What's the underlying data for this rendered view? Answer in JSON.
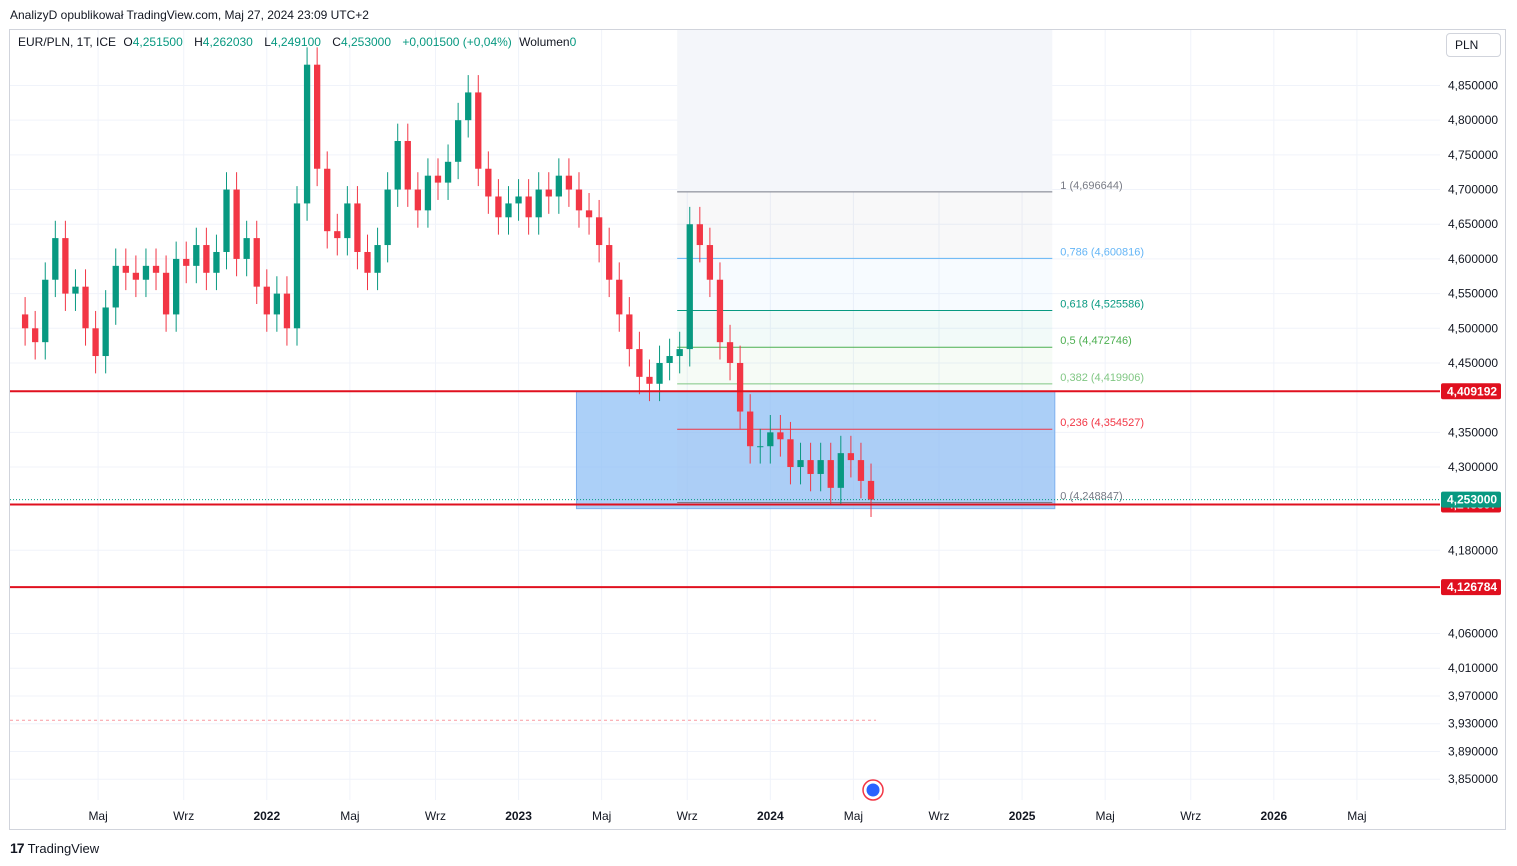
{
  "header": {
    "published_by": "AnalizyD opublikował TradingView.com, Maj 27, 2024 23:09 UTC+2"
  },
  "legend": {
    "symbol": "EUR/PLN, 1T, ICE",
    "o_label": "O",
    "o_value": "4,251500",
    "h_label": "H",
    "h_value": "4,262030",
    "l_label": "L",
    "l_value": "4,249100",
    "c_label": "C",
    "c_value": "4,253000",
    "change": "+0,001500 (+0,04%)",
    "volume_label": "Wolumen",
    "volume_value": "0"
  },
  "currency_button": "PLN",
  "footer": {
    "brand": "TradingView",
    "logo_glyph": "17"
  },
  "colors": {
    "up": "#089981",
    "down": "#f23645",
    "level_line": "#e0101f",
    "zone": "#90c0f5",
    "price_badge": "#089981"
  },
  "chart_data": {
    "type": "candlestick",
    "title": "",
    "ylim": [
      3.82,
      4.93
    ],
    "y_ticks": [
      {
        "v": 4.85,
        "label": "4,850000"
      },
      {
        "v": 4.8,
        "label": "4,800000"
      },
      {
        "v": 4.75,
        "label": "4,750000"
      },
      {
        "v": 4.7,
        "label": "4,700000"
      },
      {
        "v": 4.65,
        "label": "4,650000"
      },
      {
        "v": 4.6,
        "label": "4,600000"
      },
      {
        "v": 4.55,
        "label": "4,550000"
      },
      {
        "v": 4.5,
        "label": "4,500000"
      },
      {
        "v": 4.45,
        "label": "4,450000"
      },
      {
        "v": 4.35,
        "label": "4,350000"
      },
      {
        "v": 4.3,
        "label": "4,300000"
      },
      {
        "v": 4.18,
        "label": "4,180000"
      },
      {
        "v": 4.06,
        "label": "4,060000"
      },
      {
        "v": 4.01,
        "label": "4,010000"
      },
      {
        "v": 3.97,
        "label": "3,970000"
      },
      {
        "v": 3.93,
        "label": "3,930000"
      },
      {
        "v": 3.89,
        "label": "3,890000"
      },
      {
        "v": 3.85,
        "label": "3,850000"
      }
    ],
    "x_ticks": [
      {
        "t": 2021.33,
        "label": "Maj"
      },
      {
        "t": 2021.67,
        "label": "Wrz"
      },
      {
        "t": 2022.0,
        "label": "2022"
      },
      {
        "t": 2022.33,
        "label": "Maj"
      },
      {
        "t": 2022.67,
        "label": "Wrz"
      },
      {
        "t": 2023.0,
        "label": "2023"
      },
      {
        "t": 2023.33,
        "label": "Maj"
      },
      {
        "t": 2023.67,
        "label": "Wrz"
      },
      {
        "t": 2024.0,
        "label": "2024"
      },
      {
        "t": 2024.33,
        "label": "Maj"
      },
      {
        "t": 2024.67,
        "label": "Wrz"
      },
      {
        "t": 2025.0,
        "label": "2025"
      },
      {
        "t": 2025.33,
        "label": "Maj"
      },
      {
        "t": 2025.67,
        "label": "Wrz"
      },
      {
        "t": 2026.0,
        "label": "2026"
      },
      {
        "t": 2026.33,
        "label": "Maj"
      }
    ],
    "xlim": [
      2020.98,
      2026.66
    ],
    "close_series": [
      [
        2020.99,
        4.52
      ],
      [
        2021.04,
        4.5
      ],
      [
        2021.08,
        4.48
      ],
      [
        2021.12,
        4.57
      ],
      [
        2021.16,
        4.63
      ],
      [
        2021.2,
        4.55
      ],
      [
        2021.24,
        4.56
      ],
      [
        2021.28,
        4.5
      ],
      [
        2021.32,
        4.46
      ],
      [
        2021.36,
        4.53
      ],
      [
        2021.4,
        4.59
      ],
      [
        2021.44,
        4.58
      ],
      [
        2021.48,
        4.57
      ],
      [
        2021.52,
        4.59
      ],
      [
        2021.56,
        4.58
      ],
      [
        2021.6,
        4.52
      ],
      [
        2021.64,
        4.6
      ],
      [
        2021.68,
        4.59
      ],
      [
        2021.72,
        4.62
      ],
      [
        2021.76,
        4.58
      ],
      [
        2021.8,
        4.61
      ],
      [
        2021.84,
        4.7
      ],
      [
        2021.88,
        4.6
      ],
      [
        2021.92,
        4.63
      ],
      [
        2021.96,
        4.56
      ],
      [
        2022.0,
        4.52
      ],
      [
        2022.04,
        4.55
      ],
      [
        2022.08,
        4.5
      ],
      [
        2022.12,
        4.68
      ],
      [
        2022.16,
        4.88
      ],
      [
        2022.2,
        4.73
      ],
      [
        2022.24,
        4.64
      ],
      [
        2022.28,
        4.63
      ],
      [
        2022.32,
        4.68
      ],
      [
        2022.36,
        4.61
      ],
      [
        2022.4,
        4.58
      ],
      [
        2022.44,
        4.62
      ],
      [
        2022.48,
        4.7
      ],
      [
        2022.52,
        4.77
      ],
      [
        2022.56,
        4.7
      ],
      [
        2022.6,
        4.67
      ],
      [
        2022.64,
        4.72
      ],
      [
        2022.68,
        4.71
      ],
      [
        2022.72,
        4.74
      ],
      [
        2022.76,
        4.8
      ],
      [
        2022.8,
        4.84
      ],
      [
        2022.84,
        4.73
      ],
      [
        2022.88,
        4.69
      ],
      [
        2022.92,
        4.66
      ],
      [
        2022.96,
        4.68
      ],
      [
        2023.0,
        4.69
      ],
      [
        2023.04,
        4.66
      ],
      [
        2023.08,
        4.7
      ],
      [
        2023.12,
        4.69
      ],
      [
        2023.16,
        4.72
      ],
      [
        2023.2,
        4.7
      ],
      [
        2023.24,
        4.67
      ],
      [
        2023.28,
        4.66
      ],
      [
        2023.32,
        4.62
      ],
      [
        2023.36,
        4.57
      ],
      [
        2023.4,
        4.52
      ],
      [
        2023.44,
        4.47
      ],
      [
        2023.48,
        4.43
      ],
      [
        2023.52,
        4.42
      ],
      [
        2023.56,
        4.45
      ],
      [
        2023.6,
        4.46
      ],
      [
        2023.64,
        4.47
      ],
      [
        2023.68,
        4.65
      ],
      [
        2023.72,
        4.62
      ],
      [
        2023.76,
        4.57
      ],
      [
        2023.8,
        4.48
      ],
      [
        2023.84,
        4.45
      ],
      [
        2023.88,
        4.38
      ],
      [
        2023.92,
        4.33
      ],
      [
        2023.96,
        4.33
      ],
      [
        2024.0,
        4.35
      ],
      [
        2024.04,
        4.34
      ],
      [
        2024.08,
        4.3
      ],
      [
        2024.12,
        4.31
      ],
      [
        2024.16,
        4.29
      ],
      [
        2024.2,
        4.31
      ],
      [
        2024.24,
        4.27
      ],
      [
        2024.28,
        4.32
      ],
      [
        2024.32,
        4.31
      ],
      [
        2024.36,
        4.28
      ],
      [
        2024.4,
        4.253
      ]
    ],
    "horizontal_levels": [
      {
        "v": 4.409192,
        "label": "4,409192"
      },
      {
        "v": 4.245897,
        "label": "4,245897"
      },
      {
        "v": 4.126784,
        "label": "4,126784"
      }
    ],
    "last_price": {
      "v": 4.253,
      "label": "4,253000"
    },
    "dashed_level": 3.935,
    "fibonacci": {
      "t_start": 2023.63,
      "t_end": 2025.12,
      "levels": [
        {
          "v": 4.696644,
          "label": "1 (4,696644)",
          "color": "#787b86"
        },
        {
          "v": 4.600816,
          "label": "0,786 (4,600816)",
          "color": "#64b5f6"
        },
        {
          "v": 4.525586,
          "label": "0,618 (4,525586)",
          "color": "#089981"
        },
        {
          "v": 4.472746,
          "label": "0,5 (4,472746)",
          "color": "#4caf50"
        },
        {
          "v": 4.419906,
          "label": "0,382 (4,419906)",
          "color": "#81c784"
        },
        {
          "v": 4.354527,
          "label": "0,236 (4,354527)",
          "color": "#f23645"
        },
        {
          "v": 4.248847,
          "label": "0 (4,248847)",
          "color": "#787b86"
        }
      ]
    },
    "zone": {
      "t_start": 2023.23,
      "t_end": 2025.13,
      "y_top": 4.409192,
      "y_bottom": 4.24
    },
    "grid": true
  }
}
